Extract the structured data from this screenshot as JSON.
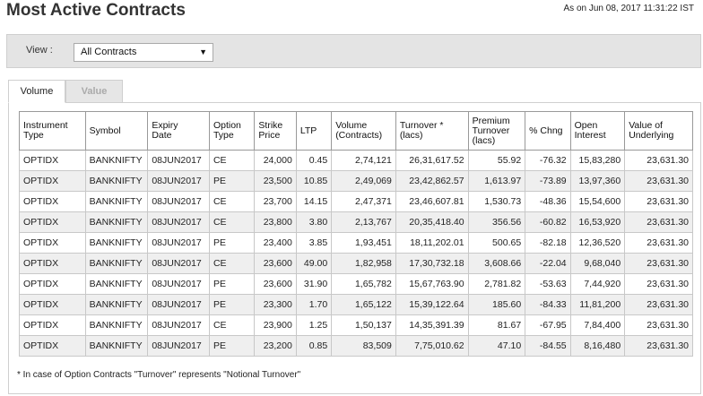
{
  "page": {
    "title": "Most Active Contracts",
    "as_on": "As on Jun 08, 2017 11:31:22 IST"
  },
  "filter": {
    "label": "View :",
    "selected": "All Contracts",
    "arrow": "▼"
  },
  "tabs": [
    {
      "label": "Volume",
      "active": true
    },
    {
      "label": "Value",
      "active": false
    }
  ],
  "table": {
    "headers": [
      [
        "Instrument",
        "Type"
      ],
      [
        "Symbol"
      ],
      [
        "Expiry",
        "Date"
      ],
      [
        "Option",
        "Type"
      ],
      [
        "Strike",
        "Price"
      ],
      [
        "LTP"
      ],
      [
        "Volume",
        "(Contracts)"
      ],
      [
        "Turnover *",
        "(lacs)"
      ],
      [
        "Premium",
        "Turnover",
        "(lacs)"
      ],
      [
        "% Chng"
      ],
      [
        "Open",
        "Interest"
      ],
      [
        "Value of",
        "Underlying"
      ]
    ],
    "rows": [
      [
        "OPTIDX",
        "BANKNIFTY",
        "08JUN2017",
        "CE",
        "24,000",
        "0.45",
        "2,74,121",
        "26,31,617.52",
        "55.92",
        "-76.32",
        "15,83,280",
        "23,631.30"
      ],
      [
        "OPTIDX",
        "BANKNIFTY",
        "08JUN2017",
        "PE",
        "23,500",
        "10.85",
        "2,49,069",
        "23,42,862.57",
        "1,613.97",
        "-73.89",
        "13,97,360",
        "23,631.30"
      ],
      [
        "OPTIDX",
        "BANKNIFTY",
        "08JUN2017",
        "CE",
        "23,700",
        "14.15",
        "2,47,371",
        "23,46,607.81",
        "1,530.73",
        "-48.36",
        "15,54,600",
        "23,631.30"
      ],
      [
        "OPTIDX",
        "BANKNIFTY",
        "08JUN2017",
        "CE",
        "23,800",
        "3.80",
        "2,13,767",
        "20,35,418.40",
        "356.56",
        "-60.82",
        "16,53,920",
        "23,631.30"
      ],
      [
        "OPTIDX",
        "BANKNIFTY",
        "08JUN2017",
        "PE",
        "23,400",
        "3.85",
        "1,93,451",
        "18,11,202.01",
        "500.65",
        "-82.18",
        "12,36,520",
        "23,631.30"
      ],
      [
        "OPTIDX",
        "BANKNIFTY",
        "08JUN2017",
        "CE",
        "23,600",
        "49.00",
        "1,82,958",
        "17,30,732.18",
        "3,608.66",
        "-22.04",
        "9,68,040",
        "23,631.30"
      ],
      [
        "OPTIDX",
        "BANKNIFTY",
        "08JUN2017",
        "PE",
        "23,600",
        "31.90",
        "1,65,782",
        "15,67,763.90",
        "2,781.82",
        "-53.63",
        "7,44,920",
        "23,631.30"
      ],
      [
        "OPTIDX",
        "BANKNIFTY",
        "08JUN2017",
        "PE",
        "23,300",
        "1.70",
        "1,65,122",
        "15,39,122.64",
        "185.60",
        "-84.33",
        "11,81,200",
        "23,631.30"
      ],
      [
        "OPTIDX",
        "BANKNIFTY",
        "08JUN2017",
        "CE",
        "23,900",
        "1.25",
        "1,50,137",
        "14,35,391.39",
        "81.67",
        "-67.95",
        "7,84,400",
        "23,631.30"
      ],
      [
        "OPTIDX",
        "BANKNIFTY",
        "08JUN2017",
        "PE",
        "23,200",
        "0.85",
        "83,509",
        "7,75,010.62",
        "47.10",
        "-84.55",
        "8,16,480",
        "23,631.30"
      ]
    ]
  },
  "footnote": "* In case of Option Contracts \"Turnover\" represents \"Notional Turnover\""
}
